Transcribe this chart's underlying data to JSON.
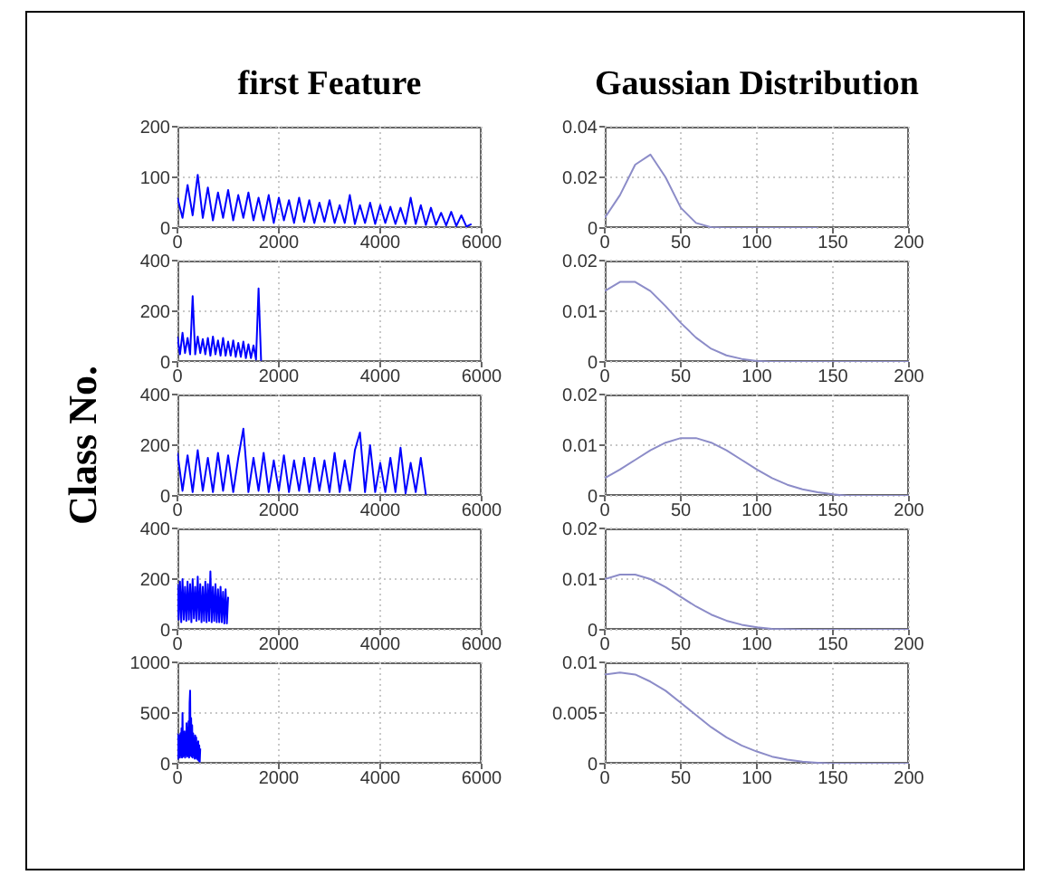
{
  "chart_data": [
    {
      "type": "line",
      "title": "first Feature",
      "color": "#0000ff",
      "xlim": [
        0,
        6000
      ],
      "xticks": [
        0,
        2000,
        4000,
        6000
      ],
      "ylim": [
        0,
        200
      ],
      "yticks": [
        0,
        100,
        200
      ],
      "grid": true,
      "x": [
        0,
        100,
        200,
        300,
        400,
        500,
        600,
        700,
        800,
        900,
        1000,
        1100,
        1200,
        1300,
        1400,
        1500,
        1600,
        1700,
        1800,
        1900,
        2000,
        2100,
        2200,
        2300,
        2400,
        2500,
        2600,
        2700,
        2800,
        2900,
        3000,
        3100,
        3200,
        3300,
        3400,
        3500,
        3600,
        3700,
        3800,
        3900,
        4000,
        4100,
        4200,
        4300,
        4400,
        4500,
        4600,
        4700,
        4800,
        4900,
        5000,
        5100,
        5200,
        5300,
        5400,
        5500,
        5600,
        5700,
        5800
      ],
      "values": [
        60,
        20,
        85,
        25,
        105,
        20,
        80,
        15,
        70,
        20,
        75,
        15,
        65,
        20,
        70,
        15,
        60,
        15,
        65,
        10,
        60,
        15,
        55,
        10,
        60,
        12,
        55,
        10,
        50,
        12,
        55,
        10,
        45,
        10,
        65,
        8,
        45,
        10,
        50,
        8,
        45,
        10,
        42,
        8,
        40,
        8,
        60,
        8,
        45,
        6,
        40,
        6,
        30,
        5,
        32,
        4,
        25,
        3,
        8
      ]
    },
    {
      "type": "line",
      "title": "Gaussian Distribution",
      "color": "#8c8cc8",
      "xlim": [
        0,
        200
      ],
      "xticks": [
        0,
        50,
        100,
        150,
        200
      ],
      "ylim": [
        0,
        0.04
      ],
      "yticks": [
        0,
        0.02,
        0.04
      ],
      "grid": true,
      "x": [
        0,
        10,
        20,
        30,
        40,
        50,
        60,
        70,
        80,
        90,
        100,
        110,
        120,
        130,
        140
      ],
      "values": [
        0.004,
        0.013,
        0.025,
        0.029,
        0.02,
        0.008,
        0.002,
        0.0003,
        0,
        0,
        0,
        0,
        0,
        0,
        0
      ]
    },
    {
      "type": "line",
      "color": "#0000ff",
      "xlim": [
        0,
        6000
      ],
      "xticks": [
        0,
        2000,
        4000,
        6000
      ],
      "ylim": [
        0,
        400
      ],
      "yticks": [
        0,
        200,
        400
      ],
      "grid": true,
      "x": [
        0,
        50,
        100,
        150,
        200,
        250,
        300,
        350,
        400,
        450,
        500,
        550,
        600,
        650,
        700,
        750,
        800,
        850,
        900,
        950,
        1000,
        1050,
        1100,
        1150,
        1200,
        1250,
        1300,
        1350,
        1400,
        1450,
        1500,
        1550,
        1600,
        1650
      ],
      "values": [
        100,
        30,
        115,
        35,
        95,
        30,
        260,
        30,
        100,
        35,
        90,
        30,
        95,
        25,
        100,
        30,
        85,
        25,
        95,
        25,
        80,
        25,
        85,
        20,
        75,
        20,
        80,
        15,
        70,
        15,
        65,
        10,
        290,
        5
      ]
    },
    {
      "type": "line",
      "color": "#8c8cc8",
      "xlim": [
        0,
        200
      ],
      "xticks": [
        0,
        50,
        100,
        150,
        200
      ],
      "ylim": [
        0,
        0.02
      ],
      "yticks": [
        0,
        0.01,
        0.02
      ],
      "grid": true,
      "x": [
        0,
        10,
        20,
        30,
        40,
        50,
        60,
        70,
        80,
        90,
        100,
        110,
        120,
        130,
        140,
        150,
        160,
        170,
        180,
        190,
        200
      ],
      "values": [
        0.014,
        0.0158,
        0.0158,
        0.014,
        0.011,
        0.0077,
        0.0048,
        0.0026,
        0.0013,
        0.0006,
        0.0002,
        0,
        0,
        0,
        0,
        0,
        0,
        0,
        0,
        0,
        0
      ]
    },
    {
      "type": "line",
      "ylabel": "Class No.",
      "color": "#0000ff",
      "xlim": [
        0,
        6000
      ],
      "xticks": [
        0,
        2000,
        4000,
        6000
      ],
      "ylim": [
        0,
        400
      ],
      "yticks": [
        0,
        200,
        400
      ],
      "grid": true,
      "x": [
        0,
        100,
        200,
        300,
        400,
        500,
        600,
        700,
        800,
        900,
        1000,
        1100,
        1200,
        1300,
        1400,
        1500,
        1600,
        1700,
        1800,
        1900,
        2000,
        2100,
        2200,
        2300,
        2400,
        2500,
        2600,
        2700,
        2800,
        2900,
        3000,
        3100,
        3200,
        3300,
        3400,
        3500,
        3600,
        3700,
        3800,
        3900,
        4000,
        4100,
        4200,
        4300,
        4400,
        4500,
        4600,
        4700,
        4800,
        4900
      ],
      "values": [
        170,
        20,
        160,
        15,
        180,
        20,
        150,
        15,
        170,
        20,
        160,
        15,
        150,
        265,
        15,
        150,
        20,
        170,
        15,
        140,
        20,
        160,
        15,
        140,
        20,
        150,
        15,
        150,
        20,
        140,
        15,
        170,
        15,
        140,
        20,
        180,
        250,
        15,
        200,
        15,
        130,
        15,
        150,
        15,
        190,
        10,
        130,
        15,
        150,
        5
      ]
    },
    {
      "type": "line",
      "color": "#8c8cc8",
      "xlim": [
        0,
        200
      ],
      "xticks": [
        0,
        50,
        100,
        150,
        200
      ],
      "ylim": [
        0,
        0.02
      ],
      "yticks": [
        0,
        0.01,
        0.02
      ],
      "grid": true,
      "x": [
        0,
        10,
        20,
        30,
        40,
        50,
        60,
        70,
        80,
        90,
        100,
        110,
        120,
        130,
        140,
        150,
        160,
        170,
        180,
        190,
        200
      ],
      "values": [
        0.0035,
        0.0052,
        0.0071,
        0.009,
        0.0105,
        0.0114,
        0.0114,
        0.0105,
        0.009,
        0.0071,
        0.0052,
        0.0035,
        0.0022,
        0.0013,
        0.0007,
        0.0003,
        0,
        0,
        0,
        0,
        0
      ]
    },
    {
      "type": "line",
      "color": "#0000ff",
      "xlim": [
        0,
        6000
      ],
      "xticks": [
        0,
        2000,
        4000,
        6000
      ],
      "ylim": [
        0,
        400
      ],
      "yticks": [
        0,
        200,
        400
      ],
      "grid": true,
      "x": [
        0,
        25,
        50,
        75,
        100,
        125,
        150,
        175,
        200,
        225,
        250,
        275,
        300,
        325,
        350,
        375,
        400,
        425,
        450,
        475,
        500,
        525,
        550,
        575,
        600,
        625,
        650,
        675,
        700,
        725,
        750,
        775,
        800,
        825,
        850,
        875,
        900,
        925,
        950,
        975,
        1000
      ],
      "values": [
        180,
        40,
        190,
        30,
        200,
        40,
        170,
        35,
        190,
        40,
        180,
        30,
        200,
        45,
        170,
        35,
        210,
        40,
        180,
        30,
        170,
        35,
        190,
        30,
        180,
        35,
        230,
        30,
        170,
        35,
        180,
        30,
        160,
        30,
        170,
        30,
        150,
        25,
        160,
        25,
        130
      ]
    },
    {
      "type": "line",
      "color": "#8c8cc8",
      "xlim": [
        0,
        200
      ],
      "xticks": [
        0,
        50,
        100,
        150,
        200
      ],
      "ylim": [
        0,
        0.02
      ],
      "yticks": [
        0,
        0.01,
        0.02
      ],
      "grid": true,
      "x": [
        0,
        10,
        20,
        30,
        40,
        50,
        60,
        70,
        80,
        90,
        100,
        110,
        120,
        130,
        140,
        150,
        160,
        170,
        180,
        190,
        200
      ],
      "values": [
        0.01,
        0.0109,
        0.0109,
        0.01,
        0.0084,
        0.0065,
        0.0046,
        0.003,
        0.0018,
        0.001,
        0.0005,
        0.0002,
        0.0001,
        0,
        0,
        0,
        0,
        0,
        0,
        0,
        0
      ]
    },
    {
      "type": "line",
      "color": "#0000ff",
      "xlim": [
        0,
        6000
      ],
      "xticks": [
        0,
        2000,
        4000,
        6000
      ],
      "ylim": [
        0,
        1000
      ],
      "yticks": [
        0,
        500,
        1000
      ],
      "grid": true,
      "x": [
        0,
        10,
        20,
        30,
        40,
        50,
        60,
        70,
        80,
        90,
        100,
        110,
        120,
        130,
        140,
        150,
        160,
        170,
        180,
        190,
        200,
        210,
        220,
        230,
        240,
        250,
        260,
        270,
        280,
        290,
        300,
        310,
        320,
        330,
        340,
        350,
        360,
        370,
        380,
        390,
        400,
        410,
        420,
        430,
        440,
        450
      ],
      "values": [
        300,
        50,
        250,
        80,
        280,
        60,
        300,
        80,
        350,
        60,
        500,
        70,
        300,
        80,
        320,
        60,
        280,
        90,
        400,
        70,
        350,
        80,
        420,
        60,
        600,
        720,
        80,
        450,
        70,
        380,
        60,
        300,
        80,
        250,
        50,
        280,
        60,
        260,
        50,
        200,
        40,
        220,
        30,
        180,
        20,
        150
      ]
    },
    {
      "type": "line",
      "color": "#8c8cc8",
      "xlim": [
        0,
        200
      ],
      "xticks": [
        0,
        50,
        100,
        150,
        200
      ],
      "ylim": [
        0,
        0.01
      ],
      "yticks": [
        0,
        0.005,
        0.01
      ],
      "grid": true,
      "x": [
        0,
        10,
        20,
        30,
        40,
        50,
        60,
        70,
        80,
        90,
        100,
        110,
        120,
        130,
        140,
        150,
        160,
        170,
        180,
        190,
        200
      ],
      "values": [
        0.0088,
        0.009,
        0.0088,
        0.0081,
        0.0072,
        0.006,
        0.0048,
        0.0036,
        0.0026,
        0.0018,
        0.0012,
        0.0007,
        0.0004,
        0.0002,
        0.0001,
        0,
        0,
        0,
        0,
        0,
        0
      ]
    }
  ]
}
